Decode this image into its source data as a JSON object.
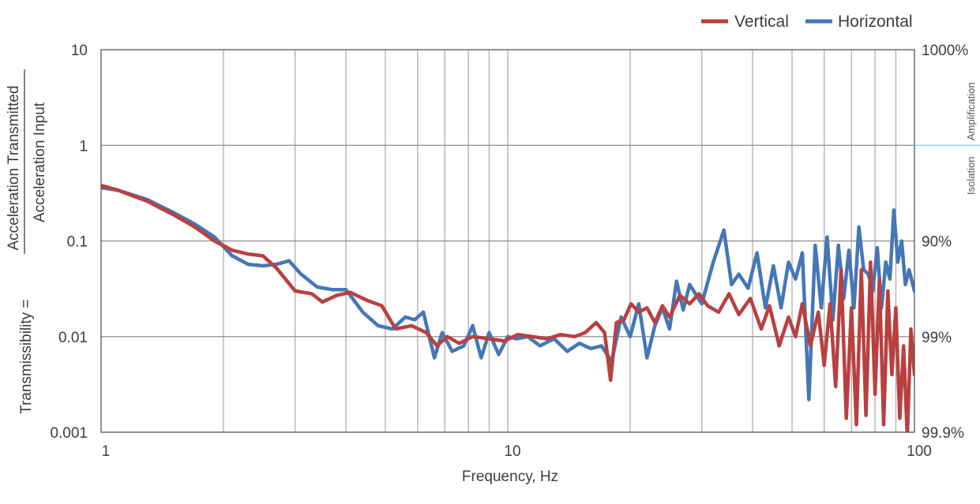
{
  "chart_data": {
    "type": "line",
    "x_scale": "log",
    "y_scale": "log",
    "xlim": [
      1,
      100
    ],
    "ylim": [
      0.001,
      10
    ],
    "grid": true,
    "legend_position": "top-right",
    "xlabel": "Frequency, Hz",
    "ylabel_prefix": "Transmissibility =",
    "ylabel_numerator": "Acceleration Transmitted",
    "ylabel_denominator": "Acceleration Input",
    "x_tick_labels": [
      {
        "value": 1,
        "label": "1"
      },
      {
        "value": 10,
        "label": "10"
      },
      {
        "value": 100,
        "label": "100"
      }
    ],
    "y_tick_labels": [
      {
        "value": 10,
        "label": "10"
      },
      {
        "value": 1,
        "label": "1"
      },
      {
        "value": 0.1,
        "label": "0.1"
      },
      {
        "value": 0.01,
        "label": "0.01"
      },
      {
        "value": 0.001,
        "label": "0.001"
      }
    ],
    "right_axis_labels": [
      {
        "value": 10,
        "label": "1000%"
      },
      {
        "value": 0.1,
        "label": "90%"
      },
      {
        "value": 0.01,
        "label": "99%"
      },
      {
        "value": 0.001,
        "label": "99.9%"
      }
    ],
    "right_region_labels": {
      "above": "Amplification",
      "below": "Isolation"
    },
    "series": [
      {
        "name": "Vertical",
        "color": "#b94040",
        "x": [
          1,
          1.1,
          1.3,
          1.5,
          1.7,
          1.9,
          2.1,
          2.3,
          2.5,
          2.7,
          3.0,
          3.3,
          3.5,
          3.8,
          4.1,
          4.5,
          4.9,
          5.3,
          5.8,
          6.3,
          6.7,
          7.1,
          7.6,
          8.2,
          9.0,
          9.8,
          10.6,
          11.5,
          12.5,
          13.5,
          14.6,
          15.5,
          16.5,
          17.3,
          17.9,
          18.5,
          19.3,
          20.1,
          21,
          22,
          23,
          24,
          25,
          26.5,
          28,
          29.5,
          31,
          33,
          35,
          37,
          39.5,
          42,
          44,
          46.5,
          49,
          51,
          53,
          55.5,
          58,
          60,
          62,
          64,
          66,
          68,
          70,
          72,
          74,
          76,
          78,
          80,
          82,
          84,
          86,
          88,
          90,
          92,
          94,
          96,
          98,
          100
        ],
        "y": [
          0.38,
          0.34,
          0.26,
          0.19,
          0.14,
          0.1,
          0.08,
          0.073,
          0.07,
          0.052,
          0.03,
          0.028,
          0.023,
          0.027,
          0.029,
          0.024,
          0.021,
          0.012,
          0.013,
          0.011,
          0.008,
          0.01,
          0.0085,
          0.01,
          0.0095,
          0.009,
          0.0105,
          0.01,
          0.0095,
          0.0105,
          0.01,
          0.011,
          0.014,
          0.011,
          0.0035,
          0.014,
          0.015,
          0.022,
          0.018,
          0.02,
          0.014,
          0.021,
          0.016,
          0.027,
          0.022,
          0.028,
          0.021,
          0.018,
          0.028,
          0.017,
          0.025,
          0.012,
          0.021,
          0.008,
          0.016,
          0.01,
          0.022,
          0.008,
          0.018,
          0.005,
          0.022,
          0.003,
          0.05,
          0.0014,
          0.02,
          0.0012,
          0.05,
          0.0015,
          0.06,
          0.0025,
          0.04,
          0.0012,
          0.03,
          0.004,
          0.02,
          0.0014,
          0.008,
          0.0009,
          0.012,
          0.004
        ]
      },
      {
        "name": "Horizontal",
        "color": "#4577b6",
        "x": [
          1,
          1.1,
          1.3,
          1.5,
          1.7,
          1.9,
          2.1,
          2.3,
          2.5,
          2.7,
          2.9,
          3.1,
          3.4,
          3.7,
          4.0,
          4.4,
          4.8,
          5.2,
          5.6,
          5.9,
          6.2,
          6.6,
          6.9,
          7.3,
          7.8,
          8.2,
          8.6,
          9.0,
          9.5,
          10.0,
          10.5,
          11.2,
          12,
          13,
          14,
          15,
          16,
          17,
          18,
          19,
          20,
          21,
          22,
          23,
          24,
          25,
          26,
          27,
          28,
          30,
          32,
          34,
          35.5,
          37,
          39,
          41,
          43,
          45,
          47,
          49,
          51,
          53,
          55,
          57,
          59,
          61,
          63,
          65,
          67,
          69,
          71,
          73,
          75,
          77,
          79,
          81,
          83,
          85,
          87,
          89,
          91,
          93,
          95,
          97,
          100
        ],
        "y": [
          0.36,
          0.34,
          0.27,
          0.2,
          0.15,
          0.11,
          0.07,
          0.057,
          0.055,
          0.057,
          0.062,
          0.045,
          0.033,
          0.031,
          0.031,
          0.018,
          0.013,
          0.012,
          0.016,
          0.015,
          0.018,
          0.006,
          0.011,
          0.007,
          0.008,
          0.013,
          0.006,
          0.011,
          0.0065,
          0.01,
          0.0095,
          0.01,
          0.008,
          0.0095,
          0.007,
          0.0085,
          0.0075,
          0.008,
          0.0055,
          0.016,
          0.01,
          0.022,
          0.006,
          0.013,
          0.02,
          0.012,
          0.038,
          0.019,
          0.035,
          0.022,
          0.06,
          0.13,
          0.035,
          0.045,
          0.032,
          0.075,
          0.02,
          0.055,
          0.02,
          0.06,
          0.04,
          0.075,
          0.0022,
          0.09,
          0.02,
          0.11,
          0.015,
          0.09,
          0.025,
          0.08,
          0.02,
          0.14,
          0.05,
          0.045,
          0.03,
          0.085,
          0.02,
          0.06,
          0.04,
          0.21,
          0.06,
          0.1,
          0.035,
          0.05,
          0.03
        ]
      }
    ]
  }
}
